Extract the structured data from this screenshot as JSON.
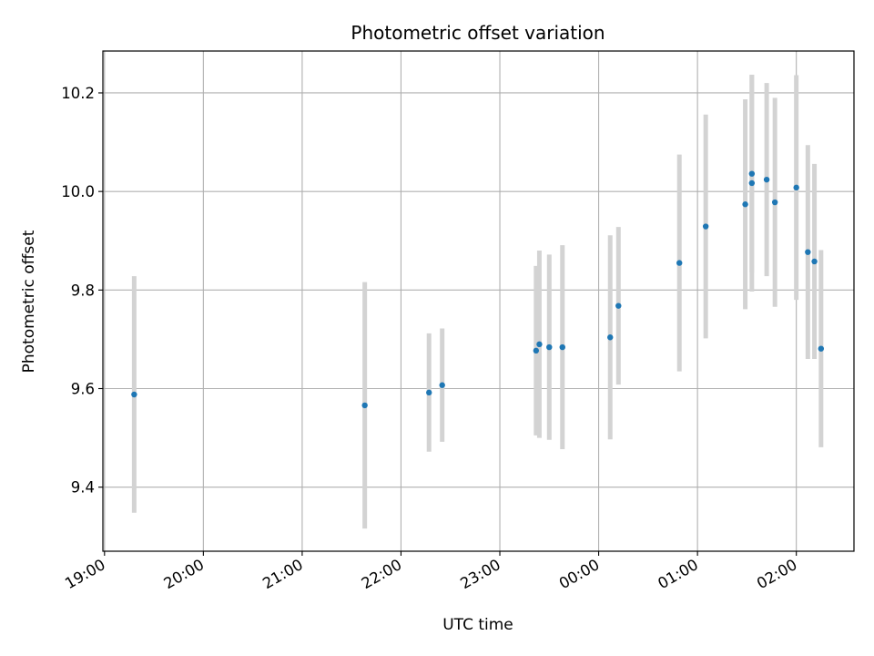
{
  "chart_data": {
    "type": "scatter",
    "title": "Photometric offset variation",
    "xlabel": "UTC time",
    "ylabel": "Photometric offset",
    "x_ticks": [
      "19:00",
      "20:00",
      "21:00",
      "22:00",
      "23:00",
      "00:00",
      "01:00",
      "02:00"
    ],
    "y_ticks": [
      "9.4",
      "9.6",
      "9.8",
      "10.0",
      "10.2"
    ],
    "y_tick_values": [
      9.4,
      9.6,
      9.8,
      10.0,
      10.2
    ],
    "ylim": [
      9.27,
      10.285
    ],
    "xlim": [
      "18:59",
      "02:35"
    ],
    "grid": true,
    "errorbar_color": "#d3d3d3",
    "point_color": "#1f77b4",
    "points": [
      {
        "x": "19:18",
        "y": 9.588,
        "err": 0.24
      },
      {
        "x": "21:38",
        "y": 9.566,
        "err": 0.25
      },
      {
        "x": "22:17",
        "y": 9.592,
        "err": 0.12
      },
      {
        "x": "22:25",
        "y": 9.607,
        "err": 0.115
      },
      {
        "x": "23:22",
        "y": 9.677,
        "err": 0.172
      },
      {
        "x": "23:24",
        "y": 9.69,
        "err": 0.19
      },
      {
        "x": "23:30",
        "y": 9.684,
        "err": 0.188
      },
      {
        "x": "23:38",
        "y": 9.684,
        "err": 0.207
      },
      {
        "x": "00:07",
        "y": 9.704,
        "err": 0.207
      },
      {
        "x": "00:12",
        "y": 9.768,
        "err": 0.16
      },
      {
        "x": "00:49",
        "y": 9.855,
        "err": 0.22
      },
      {
        "x": "01:05",
        "y": 9.929,
        "err": 0.227
      },
      {
        "x": "01:29",
        "y": 9.974,
        "err": 0.213
      },
      {
        "x": "01:33",
        "y": 10.036,
        "err": 0.2
      },
      {
        "x": "01:33",
        "y": 10.017,
        "err": 0.22
      },
      {
        "x": "01:42",
        "y": 10.024,
        "err": 0.196
      },
      {
        "x": "01:47",
        "y": 9.978,
        "err": 0.212
      },
      {
        "x": "02:00",
        "y": 10.008,
        "err": 0.228
      },
      {
        "x": "02:07",
        "y": 9.877,
        "err": 0.217
      },
      {
        "x": "02:11",
        "y": 9.858,
        "err": 0.198
      },
      {
        "x": "02:15",
        "y": 9.681,
        "err": 0.2
      }
    ]
  }
}
